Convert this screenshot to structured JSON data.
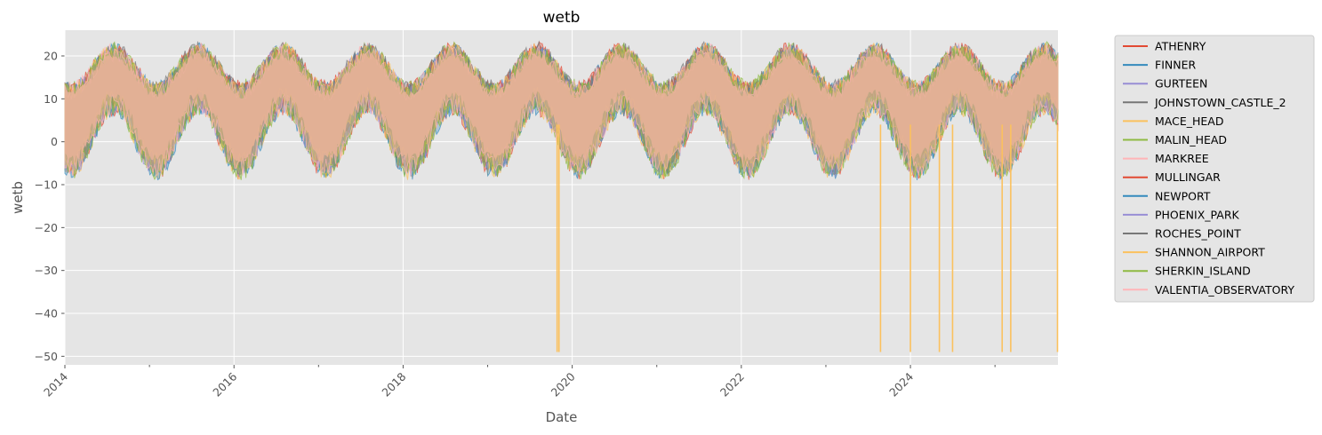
{
  "chart_data": {
    "type": "line",
    "title": "wetb",
    "xlabel": "Date",
    "ylabel": "wetb",
    "xlim": [
      "2014-01-01",
      "2025-09-30"
    ],
    "ylim": [
      -52,
      26
    ],
    "x_ticks": [
      "2014",
      "2016",
      "2018",
      "2020",
      "2022",
      "2024"
    ],
    "y_ticks": [
      20,
      10,
      0,
      -10,
      -20,
      -30,
      -40,
      -50
    ],
    "grid": true,
    "legend_position": "outside-right",
    "series": [
      {
        "name": "ATHENRY",
        "color": "#E24A33"
      },
      {
        "name": "FINNER",
        "color": "#348ABD"
      },
      {
        "name": "GURTEEN",
        "color": "#988ED5"
      },
      {
        "name": "JOHNSTOWN_CASTLE_2",
        "color": "#777777"
      },
      {
        "name": "MACE_HEAD",
        "color": "#FBC15E"
      },
      {
        "name": "MALIN_HEAD",
        "color": "#8EBA42"
      },
      {
        "name": "MARKREE",
        "color": "#FFB5B8"
      },
      {
        "name": "MULLINGAR",
        "color": "#E24A33"
      },
      {
        "name": "NEWPORT",
        "color": "#348ABD"
      },
      {
        "name": "PHOENIX_PARK",
        "color": "#988ED5"
      },
      {
        "name": "ROCHES_POINT",
        "color": "#777777"
      },
      {
        "name": "SHANNON_AIRPORT",
        "color": "#FBC15E"
      },
      {
        "name": "SHERKIN_ISLAND",
        "color": "#8EBA42"
      },
      {
        "name": "VALENTIA_OBSERVATORY",
        "color": "#FFB5B8"
      }
    ],
    "seasonal_envelope": {
      "annual_high_peak": 21,
      "annual_high_trough": 12,
      "annual_low_peak": 9,
      "annual_low_trough": -6
    },
    "spikes": {
      "series": "SHANNON_AIRPORT",
      "value": -49,
      "dates": [
        "2019-10-28",
        "2019-11-05",
        "2023-08-25",
        "2024-01-01",
        "2024-05-05",
        "2024-07-01",
        "2025-02-01",
        "2025-03-10",
        "2025-09-28"
      ]
    }
  }
}
